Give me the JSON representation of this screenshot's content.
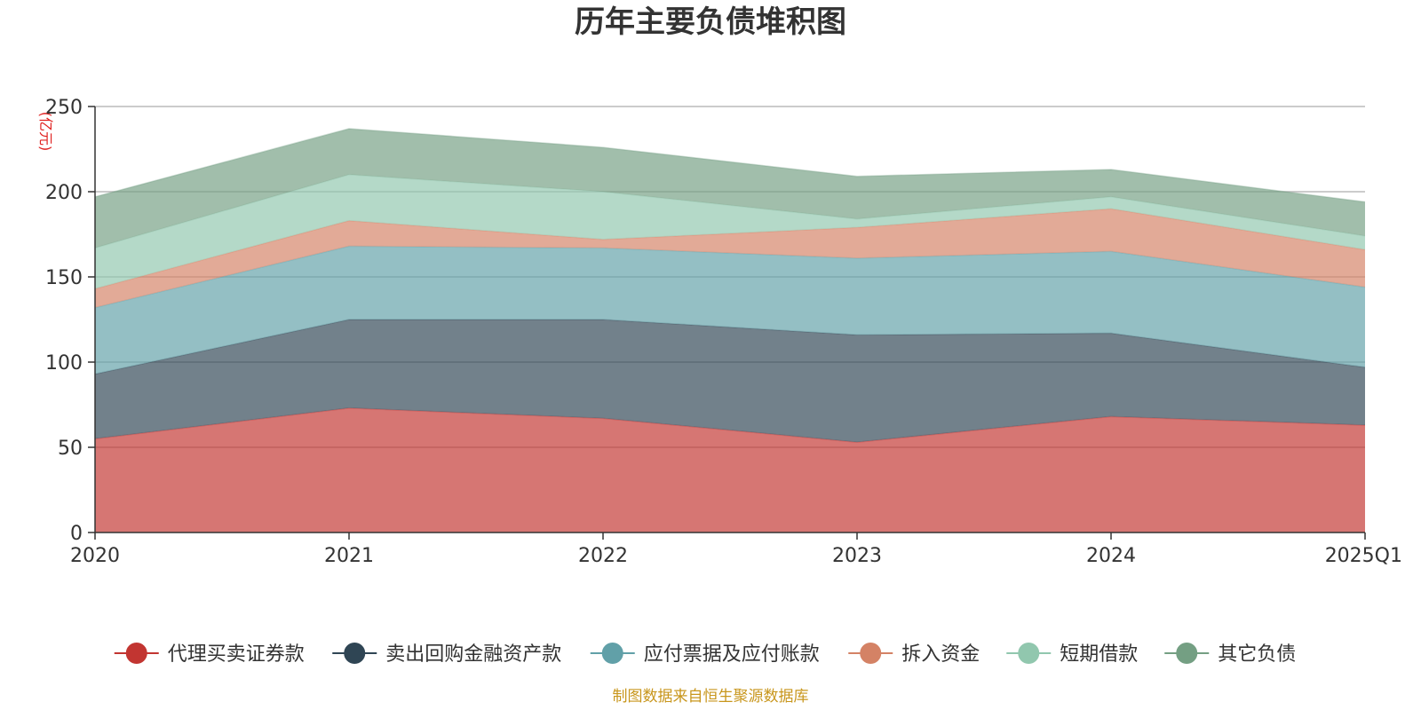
{
  "chart_data": {
    "type": "area",
    "stacked": true,
    "title": "历年主要负债堆积图",
    "unit_label": "(亿元)",
    "categories": [
      "2020",
      "2021",
      "2022",
      "2023",
      "2024",
      "2025Q1"
    ],
    "ylim": [
      0,
      250
    ],
    "yticks": [
      0,
      50,
      100,
      150,
      200,
      250
    ],
    "ytick_labels": [
      "0",
      "50",
      "100",
      "150",
      "200",
      "250"
    ],
    "grid": true,
    "legend_position": "bottom",
    "series": [
      {
        "name": "代理买卖证券款",
        "color": "#c23531",
        "values": [
          55,
          73,
          67,
          53,
          68,
          63
        ]
      },
      {
        "name": "卖出回购金融资产款",
        "color": "#2f4554",
        "values": [
          38,
          52,
          58,
          63,
          49,
          34
        ]
      },
      {
        "name": "应付票据及应付账款",
        "color": "#61a0a8",
        "values": [
          39,
          43,
          42,
          45,
          48,
          47
        ]
      },
      {
        "name": "拆入资金",
        "color": "#d48265",
        "values": [
          11,
          15,
          5,
          18,
          25,
          22
        ]
      },
      {
        "name": "短期借款",
        "color": "#91c7ae",
        "values": [
          24,
          27,
          28,
          5,
          7,
          8
        ]
      },
      {
        "name": "其它负债",
        "color": "#749f83",
        "values": [
          30,
          27,
          26,
          25,
          16,
          20
        ]
      }
    ],
    "source_note": "制图数据来自恒生聚源数据库"
  }
}
